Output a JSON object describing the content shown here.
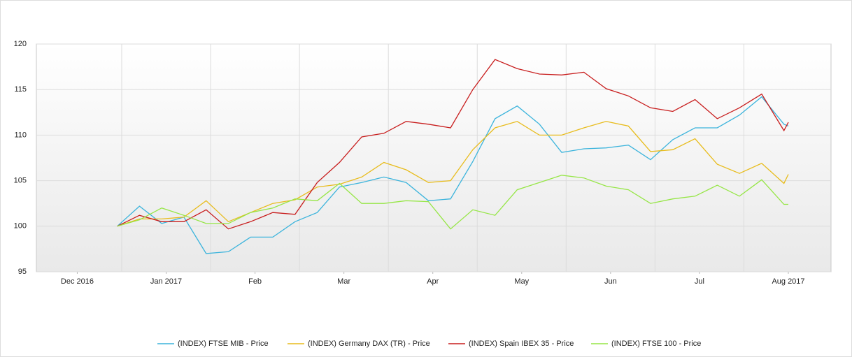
{
  "chart_data": {
    "type": "line",
    "x": [
      0.95,
      1.2,
      1.45,
      1.7,
      1.95,
      2.2,
      2.45,
      2.7,
      2.95,
      3.2,
      3.45,
      3.7,
      3.95,
      4.2,
      4.45,
      4.7,
      4.95,
      5.2,
      5.45,
      5.7,
      5.95,
      6.2,
      6.45,
      6.7,
      6.95,
      7.2,
      7.45,
      7.7,
      7.95,
      8.2,
      8.45,
      8.5
    ],
    "series": [
      {
        "name": "(INDEX) FTSE MIB - Price",
        "color": "#3cb4dc",
        "values": [
          100,
          102.2,
          100.3,
          101,
          97,
          97.2,
          98.8,
          98.8,
          100.5,
          101.5,
          104.3,
          104.8,
          105.4,
          104.8,
          102.8,
          103,
          107.1,
          111.8,
          113.2,
          111.2,
          108.1,
          108.5,
          108.6,
          108.9,
          107.3,
          109.5,
          110.8,
          110.8,
          112.2,
          114.2,
          111.2,
          111
        ]
      },
      {
        "name": "(INDEX) Germany DAX (TR) - Price",
        "color": "#e8bc1c",
        "values": [
          100,
          100.8,
          100.8,
          101,
          102.8,
          100.5,
          101.5,
          102.5,
          102.9,
          104.3,
          104.6,
          105.4,
          107,
          106.2,
          104.8,
          105,
          108.4,
          110.8,
          111.5,
          110,
          110,
          110.8,
          111.5,
          111,
          108.2,
          108.4,
          109.6,
          106.8,
          105.8,
          106.9,
          104.7,
          105.7
        ]
      },
      {
        "name": "(INDEX) Spain IBEX 35 - Price",
        "color": "#c81e1e",
        "values": [
          100,
          101.2,
          100.5,
          100.5,
          101.8,
          99.7,
          100.5,
          101.5,
          101.3,
          104.8,
          107,
          109.8,
          110.2,
          111.5,
          111.2,
          110.8,
          115,
          118.3,
          117.3,
          116.7,
          116.6,
          116.9,
          115.1,
          114.3,
          113,
          112.6,
          113.9,
          111.8,
          113,
          114.5,
          110.5,
          111.4
        ]
      },
      {
        "name": "(INDEX) FTSE 100 - Price",
        "color": "#96e646",
        "values": [
          100,
          100.7,
          102,
          101.2,
          100.3,
          100.3,
          101.5,
          102,
          103,
          102.8,
          104.7,
          102.5,
          102.5,
          102.8,
          102.7,
          99.7,
          101.8,
          101.2,
          104,
          104.8,
          105.6,
          105.3,
          104.4,
          104,
          102.5,
          103,
          103.3,
          104.5,
          103.3,
          105.1,
          102.4,
          102.4
        ]
      }
    ],
    "xlim": [
      0.04,
      8.98
    ],
    "xticks": [
      {
        "value": 0.5,
        "label": "Dec 2016"
      },
      {
        "value": 1.5,
        "label": "Jan 2017"
      },
      {
        "value": 2.5,
        "label": "Feb"
      },
      {
        "value": 3.5,
        "label": "Mar"
      },
      {
        "value": 4.5,
        "label": "Apr"
      },
      {
        "value": 5.5,
        "label": "May"
      },
      {
        "value": 6.5,
        "label": "Jun"
      },
      {
        "value": 7.5,
        "label": "Jul"
      },
      {
        "value": 8.5,
        "label": "Aug 2017"
      }
    ],
    "ylim": [
      95,
      120
    ],
    "yticks": [
      95,
      100,
      105,
      110,
      115,
      120
    ],
    "grid": true
  }
}
